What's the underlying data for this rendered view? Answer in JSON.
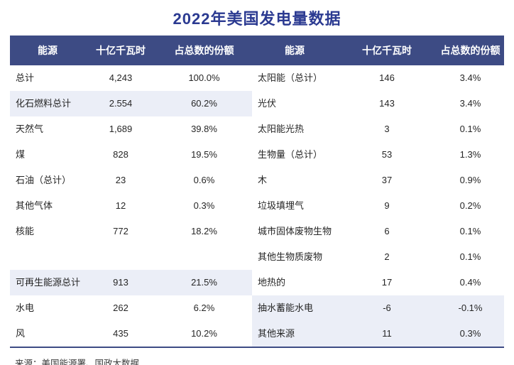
{
  "title": "2022年美国发电量数据",
  "chart_data": {
    "type": "table",
    "title": "2022年美国发电量数据",
    "columns": [
      "能源",
      "十亿千瓦时",
      "占总数的份额",
      "能源",
      "十亿千瓦时",
      "占总数的份额"
    ],
    "rows": [
      {
        "left": {
          "label": "总计",
          "value": "4,243",
          "share": "100.0%",
          "shaded": false
        },
        "right": {
          "label": "太阳能（总计）",
          "value": "146",
          "share": "3.4%",
          "shaded": false
        }
      },
      {
        "left": {
          "label": "化石燃料总计",
          "value": "2.554",
          "share": "60.2%",
          "shaded": true
        },
        "right": {
          "label": "光伏",
          "value": "143",
          "share": "3.4%",
          "shaded": false
        }
      },
      {
        "left": {
          "label": "天然气",
          "value": "1,689",
          "share": "39.8%",
          "shaded": false
        },
        "right": {
          "label": "太阳能光热",
          "value": "3",
          "share": "0.1%",
          "shaded": false
        }
      },
      {
        "left": {
          "label": "煤",
          "value": "828",
          "share": "19.5%",
          "shaded": false
        },
        "right": {
          "label": "生物量（总计）",
          "value": "53",
          "share": "1.3%",
          "shaded": false
        }
      },
      {
        "left": {
          "label": "石油（总计）",
          "value": "23",
          "share": "0.6%",
          "shaded": false
        },
        "right": {
          "label": "木",
          "value": "37",
          "share": "0.9%",
          "shaded": false
        }
      },
      {
        "left": {
          "label": "其他气体",
          "value": "12",
          "share": "0.3%",
          "shaded": false
        },
        "right": {
          "label": "垃圾填埋气",
          "value": "9",
          "share": "0.2%",
          "shaded": false
        }
      },
      {
        "left": {
          "label": "核能",
          "value": "772",
          "share": "18.2%",
          "shaded": false
        },
        "right": {
          "label": "城市固体废物生物",
          "value": "6",
          "share": "0.1%",
          "shaded": false
        }
      },
      {
        "left": {
          "label": "",
          "value": "",
          "share": "",
          "shaded": false
        },
        "right": {
          "label": "其他生物质废物",
          "value": "2",
          "share": "0.1%",
          "shaded": false
        }
      },
      {
        "left": {
          "label": "可再生能源总计",
          "value": "913",
          "share": "21.5%",
          "shaded": true
        },
        "right": {
          "label": "地热的",
          "value": "17",
          "share": "0.4%",
          "shaded": false
        }
      },
      {
        "left": {
          "label": "水电",
          "value": "262",
          "share": "6.2%",
          "shaded": false
        },
        "right": {
          "label": "抽水蓄能水电",
          "value": "-6",
          "share": "-0.1%",
          "shaded": true
        }
      },
      {
        "left": {
          "label": "风",
          "value": "435",
          "share": "10.2%",
          "shaded": false
        },
        "right": {
          "label": "其他来源",
          "value": "11",
          "share": "0.3%",
          "shaded": true
        }
      }
    ],
    "source": "来源：美国能源署、国政大数据"
  },
  "colors": {
    "header_bg": "#3d4b84",
    "title_text": "#2b3a91",
    "row_shade": "#ebeef7",
    "body_text": "#262626",
    "source_text": "#3a3a3a"
  }
}
